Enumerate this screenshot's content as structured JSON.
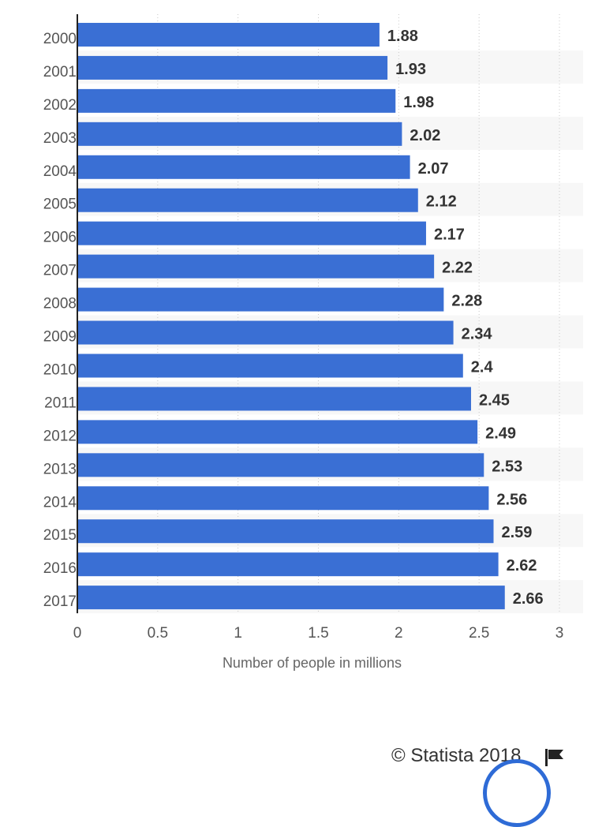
{
  "chart_data": {
    "type": "bar",
    "orientation": "horizontal",
    "categories": [
      "2000",
      "2001",
      "2002",
      "2003",
      "2004",
      "2005",
      "2006",
      "2007",
      "2008",
      "2009",
      "2010",
      "2011",
      "2012",
      "2013",
      "2014",
      "2015",
      "2016",
      "2017"
    ],
    "values": [
      1.88,
      1.93,
      1.98,
      2.02,
      2.07,
      2.12,
      2.17,
      2.22,
      2.28,
      2.34,
      2.4,
      2.45,
      2.49,
      2.53,
      2.56,
      2.59,
      2.62,
      2.66
    ],
    "value_labels": [
      "1.88",
      "1.93",
      "1.98",
      "2.02",
      "2.07",
      "2.12",
      "2.17",
      "2.22",
      "2.28",
      "2.34",
      "2.4",
      "2.45",
      "2.49",
      "2.53",
      "2.56",
      "2.59",
      "2.62",
      "2.66"
    ],
    "xlabel": "Number of people in millions",
    "ylabel": "",
    "xlim": [
      0,
      3
    ],
    "xticks": [
      "0",
      "0.5",
      "1",
      "1.5",
      "2",
      "2.5",
      "3"
    ],
    "grid": true,
    "bar_color": "#3a6fd4",
    "band_color": "#f7f7f7"
  },
  "footer": {
    "credit": "© Statista 2018"
  },
  "icons": {
    "flag": "flag-icon"
  }
}
